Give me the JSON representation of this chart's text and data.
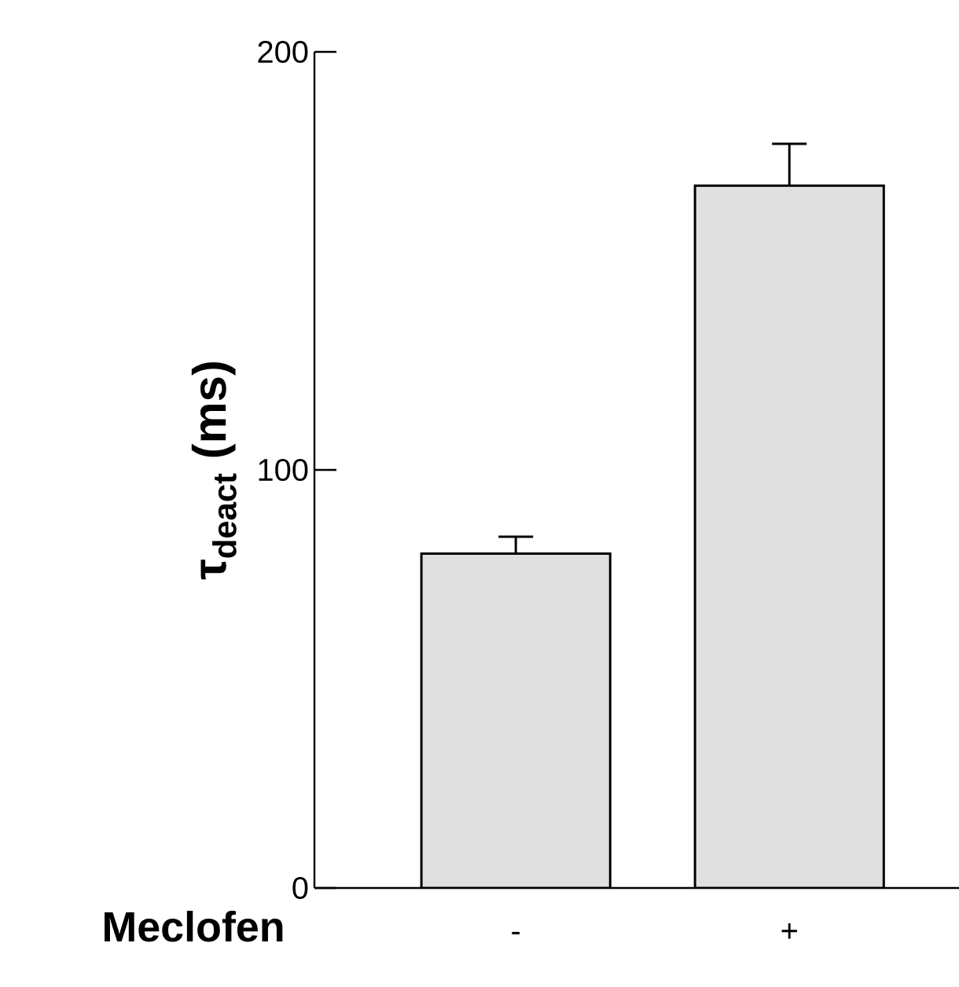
{
  "chart_data": {
    "type": "bar",
    "xlabel": "Meclofen",
    "ylabel": "τ$_{deact}$ (ms)",
    "categories": [
      "-",
      "+"
    ],
    "values": [
      80,
      168
    ],
    "errors": [
      4,
      10
    ],
    "color": "#e0e0e0",
    "ylim": [
      0,
      200
    ],
    "yticks": [
      0,
      100,
      200
    ],
    "grid": false
  }
}
